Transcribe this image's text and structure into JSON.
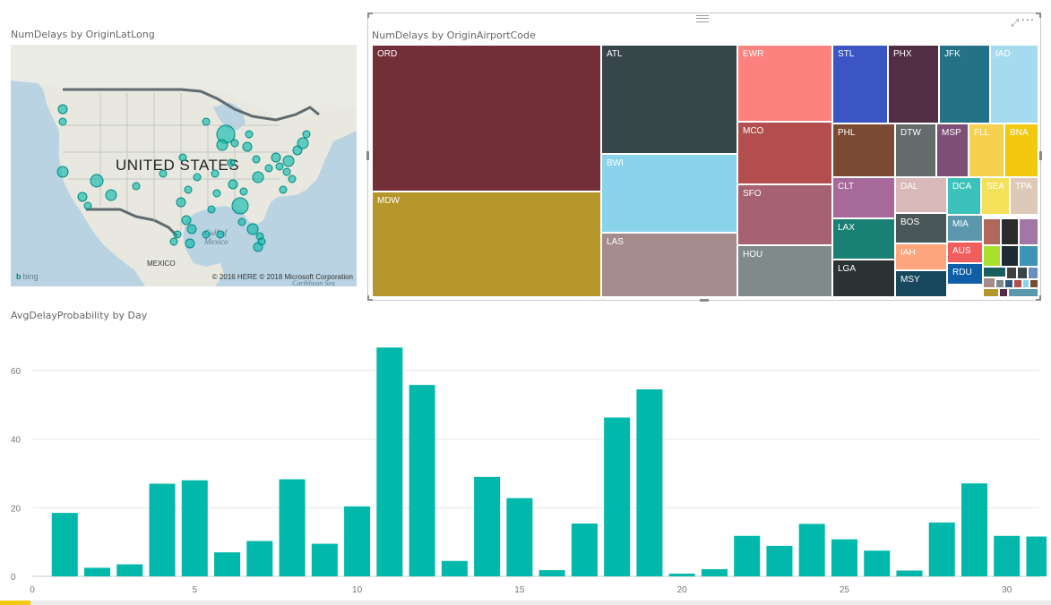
{
  "map": {
    "title": "NumDelays by OriginLatLong",
    "country_label": "UNITED STATES",
    "mexico_label": "MEXICO",
    "gulf_label": "Gulf of Mexico",
    "sea_label": "Caribbean Sea",
    "bing_label": "bing",
    "copyright": "© 2016 HERE   © 2018 Microsoft Corporation",
    "bubble_color": "#01b8aa"
  },
  "treemap": {
    "title": "NumDelays by OriginAirportCode",
    "tiles": [
      {
        "label": "ORD",
        "color": "#722f37"
      },
      {
        "label": "MDW",
        "color": "#b5962a"
      },
      {
        "label": "ATL",
        "color": "#374649"
      },
      {
        "label": "BWI",
        "color": "#8ad4eb"
      },
      {
        "label": "LAS",
        "color": "#a58c8c"
      },
      {
        "label": "EWR",
        "color": "#fd817e"
      },
      {
        "label": "MCO",
        "color": "#b24e4e"
      },
      {
        "label": "SFO",
        "color": "#a66271"
      },
      {
        "label": "HOU",
        "color": "#7f8a8a"
      },
      {
        "label": "STL",
        "color": "#3b56c4"
      },
      {
        "label": "PHX",
        "color": "#512e44"
      },
      {
        "label": "JFK",
        "color": "#237285"
      },
      {
        "label": "IAD",
        "color": "#a6dbef"
      },
      {
        "label": "PHL",
        "color": "#7a4a34"
      },
      {
        "label": "DTW",
        "color": "#636b6b"
      },
      {
        "label": "MSP",
        "color": "#7e4e76"
      },
      {
        "label": "FLL",
        "color": "#f5d14f"
      },
      {
        "label": "BNA",
        "color": "#f2c811"
      },
      {
        "label": "CLT",
        "color": "#a66999"
      },
      {
        "label": "DAL",
        "color": "#d9b8b8"
      },
      {
        "label": "DCA",
        "color": "#3bc3bb"
      },
      {
        "label": "SEA",
        "color": "#f5e05a"
      },
      {
        "label": "TPA",
        "color": "#dec9b8"
      },
      {
        "label": "LAX",
        "color": "#1b8074"
      },
      {
        "label": "BOS",
        "color": "#4a5758"
      },
      {
        "label": "MIA",
        "color": "#5b97ad"
      },
      {
        "label": "LGA",
        "color": "#2b3233"
      },
      {
        "label": "IAH",
        "color": "#fea57e"
      },
      {
        "label": "AUS",
        "color": "#f15e5e"
      },
      {
        "label": "RDU",
        "color": "#0e5fa7"
      },
      {
        "label": "MSY",
        "color": "#17475c"
      }
    ]
  },
  "chart_data": {
    "type": "bar",
    "title": "AvgDelayProbability by Day",
    "color": "#01b8aa",
    "categories": [
      1,
      2,
      3,
      4,
      5,
      6,
      7,
      8,
      9,
      10,
      11,
      12,
      13,
      14,
      15,
      16,
      17,
      18,
      19,
      20,
      21,
      22,
      23,
      24,
      25,
      26,
      27,
      28,
      29,
      30,
      31
    ],
    "values": [
      18.5,
      2.5,
      3.5,
      27,
      28,
      7,
      10.3,
      28.3,
      9.5,
      20.4,
      66.7,
      55.8,
      4.5,
      29,
      22.8,
      1.8,
      15.4,
      46.3,
      54.5,
      0.8,
      2.1,
      11.8,
      8.9,
      15.3,
      10.8,
      7.5,
      1.7,
      15.7,
      27.1,
      11.8,
      11.6
    ],
    "xlim": [
      0,
      31
    ],
    "xticks": [
      0,
      5,
      10,
      15,
      20,
      25,
      30
    ],
    "ylim": [
      0,
      72
    ],
    "yticks": [
      0,
      20,
      40,
      60
    ],
    "grid": true
  }
}
